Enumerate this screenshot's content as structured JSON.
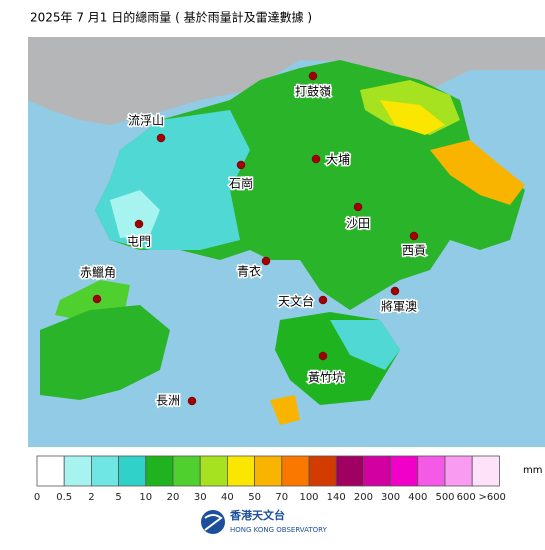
{
  "header": {
    "title": "2025年 7 月1 日的總雨量 ( 基於雨量計及雷達數據 )"
  },
  "stations": [
    "打鼓嶺",
    "流浮山",
    "大埔",
    "石崗",
    "沙田",
    "屯門",
    "西貢",
    "青衣",
    "赤鱲角",
    "天文台",
    "將軍澳",
    "黃竹坑",
    "長洲"
  ],
  "legend": {
    "unit": "mm",
    "colors": [
      "#ffffff",
      "#a6f3f0",
      "#6fe6e4",
      "#2fd1c8",
      "#1fb41f",
      "#4fd02f",
      "#a6e21f",
      "#fae600",
      "#f9b400",
      "#fa7800",
      "#d23c00",
      "#a00060",
      "#d200a0",
      "#f000c8",
      "#f55ae6",
      "#f99bf0",
      "#fde2fa"
    ],
    "labels": [
      "0",
      "0.5",
      "2",
      "5",
      "10",
      "20",
      "30",
      "40",
      "50",
      "70",
      "100",
      "140",
      "200",
      "300",
      "400",
      "500",
      "600",
      ">600"
    ]
  },
  "logo": {
    "name": "香港天文台",
    "name_en": "HONG KONG OBSERVATORY"
  }
}
